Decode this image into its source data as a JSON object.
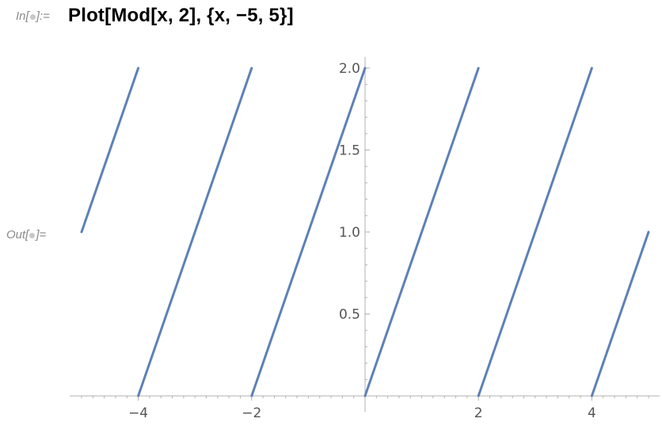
{
  "notebook": {
    "in_prefix": "In[",
    "in_suffix": "]:=",
    "input": "Plot[Mod[x, 2], {x, −5, 5}]",
    "out_prefix": "Out[",
    "out_suffix": "]="
  },
  "chart_data": {
    "type": "line",
    "title": "",
    "xlabel": "",
    "ylabel": "",
    "xlim": [
      -5,
      5
    ],
    "ylim": [
      0,
      2
    ],
    "grid": false,
    "x_ticks": [
      -4,
      -2,
      2,
      4
    ],
    "x_tick_labels": [
      "−4",
      "−2",
      "2",
      "4"
    ],
    "y_ticks": [
      0.5,
      1.0,
      1.5,
      2.0
    ],
    "y_tick_labels": [
      "0.5",
      "1.0",
      "1.5",
      "2.0"
    ],
    "series": [
      {
        "color": "#5e81b5",
        "segments": [
          [
            [
              -5,
              1
            ],
            [
              -4,
              2
            ]
          ],
          [
            [
              -4,
              0
            ],
            [
              -2,
              2
            ]
          ],
          [
            [
              -2,
              0
            ],
            [
              0,
              2
            ]
          ],
          [
            [
              0,
              0
            ],
            [
              2,
              2
            ]
          ],
          [
            [
              2,
              0
            ],
            [
              4,
              2
            ]
          ],
          [
            [
              4,
              0
            ],
            [
              5,
              1
            ]
          ]
        ]
      }
    ]
  }
}
